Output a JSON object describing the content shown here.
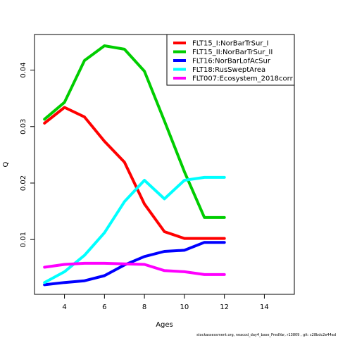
{
  "chart_data": {
    "type": "line",
    "xlabel": "Ages",
    "ylabel": "Q",
    "xlim": [
      2.5,
      15.5
    ],
    "ylim": [
      0.0003,
      0.0463
    ],
    "xticks": [
      4,
      6,
      8,
      10,
      12,
      14
    ],
    "yticks": [
      0.01,
      0.02,
      0.03,
      0.04
    ],
    "ytick_labels": [
      "0.01",
      "0.02",
      "0.03",
      "0.04"
    ],
    "grid": false,
    "legend_position": "top-right",
    "series": [
      {
        "name": "FLT15_I:NorBarTrSur_I",
        "color": "#ff0000",
        "x": [
          3,
          4,
          5,
          6,
          7,
          8,
          9,
          10,
          11,
          12
        ],
        "y": [
          0.0306,
          0.0334,
          0.0317,
          0.0274,
          0.0237,
          0.0163,
          0.0114,
          0.0102,
          0.0102,
          0.0102
        ]
      },
      {
        "name": "FLT15_II:NorBarTrSur_II",
        "color": "#00cd00",
        "x": [
          3,
          4,
          5,
          6,
          7,
          8,
          9,
          10,
          11,
          12
        ],
        "y": [
          0.0313,
          0.0343,
          0.0417,
          0.0443,
          0.0437,
          0.0398,
          0.031,
          0.022,
          0.0139,
          0.0139
        ]
      },
      {
        "name": "FLT16:NorBarLofAcSur",
        "color": "#0000ff",
        "x": [
          3,
          4,
          5,
          6,
          7,
          8,
          9,
          10,
          11,
          12
        ],
        "y": [
          0.002,
          0.0024,
          0.0027,
          0.0036,
          0.0055,
          0.007,
          0.0079,
          0.0081,
          0.0095,
          0.0095
        ]
      },
      {
        "name": "FLT18:RusSweptArea",
        "color": "#00ffff",
        "x": [
          3,
          4,
          5,
          6,
          7,
          8,
          9,
          10,
          11,
          12
        ],
        "y": [
          0.0024,
          0.0043,
          0.0072,
          0.0112,
          0.0167,
          0.0205,
          0.0172,
          0.0205,
          0.021,
          0.021
        ]
      },
      {
        "name": "FLT007:Ecosystem_2018corr",
        "color": "#ff00ff",
        "x": [
          3,
          4,
          5,
          6,
          7,
          8,
          9,
          10,
          11,
          12
        ],
        "y": [
          0.0051,
          0.0056,
          0.0058,
          0.0058,
          0.0057,
          0.0056,
          0.0045,
          0.0043,
          0.0038,
          0.0038
        ]
      }
    ]
  },
  "footer_text": "stockassessment.org, neacod_day4_base_PredVar, r13809 , git: c28bdc2e44ad"
}
